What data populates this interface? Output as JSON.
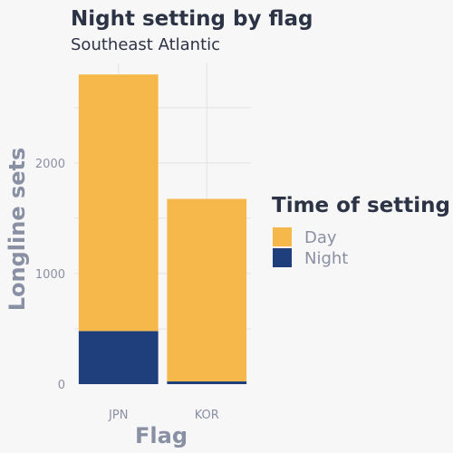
{
  "chart_data": {
    "type": "bar",
    "stacked": true,
    "title": "Night setting by flag",
    "subtitle": "Southeast Atlantic",
    "xlabel": "Flag",
    "ylabel": "Longline sets",
    "categories": [
      "JPN",
      "KOR"
    ],
    "series": [
      {
        "name": "Day",
        "values": [
          2320,
          1650
        ],
        "color": "#f7b84b"
      },
      {
        "name": "Night",
        "values": [
          480,
          25
        ],
        "color": "#1f3f7c"
      }
    ],
    "ylim": [
      0,
      2900
    ],
    "yticks": [
      0,
      1000,
      2000
    ],
    "ytick_labels": [
      "0",
      "1000",
      "2000"
    ],
    "grid": true,
    "legend": {
      "title": "Time of setting",
      "position": "right"
    }
  }
}
